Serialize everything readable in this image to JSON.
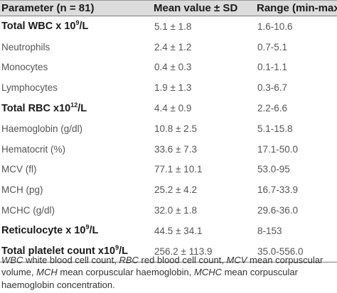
{
  "header": {
    "param": "Parameter (n = 81)",
    "mean": "Mean value ± SD",
    "range": "Range (min-max)"
  },
  "rows": [
    {
      "pre": "Total WBC x 10",
      "sup": "9",
      "post": "/L",
      "mean": "5.1 ± 1.8",
      "range": "1.6-10.6",
      "main": true
    },
    {
      "pre": "Neutrophils",
      "sup": "",
      "post": "",
      "mean": "2.4 ± 1.2",
      "range": "0.7-5.1",
      "main": false
    },
    {
      "pre": "Monocytes",
      "sup": "",
      "post": "",
      "mean": "0.4 ± 0.3",
      "range": "0.1-1.1",
      "main": false
    },
    {
      "pre": "Lymphocytes",
      "sup": "",
      "post": "",
      "mean": "1.9 ± 1.3",
      "range": "0.3-6.7",
      "main": false
    },
    {
      "pre": "Total RBC x10",
      "sup": "12",
      "post": "/L",
      "mean": "4.4 ± 0.9",
      "range": "2.2-6.6",
      "main": true
    },
    {
      "pre": "Haemoglobin (g/dl)",
      "sup": "",
      "post": "",
      "mean": "10.8 ± 2.5",
      "range": "5.1-15.8",
      "main": false
    },
    {
      "pre": "Hematocrit (%)",
      "sup": "",
      "post": "",
      "mean": "33.6 ± 7.3",
      "range": "17.1-50.0",
      "main": false
    },
    {
      "pre": "MCV (fl)",
      "sup": "",
      "post": "",
      "mean": "77.1 ± 10.1",
      "range": "53.0-95",
      "main": false
    },
    {
      "pre": "MCH (pg)",
      "sup": "",
      "post": "",
      "mean": "25.2 ± 4.2",
      "range": "16.7-33.9",
      "main": false
    },
    {
      "pre": "MCHC (g/dl)",
      "sup": "",
      "post": "",
      "mean": "32.0 ± 1.8",
      "range": "29.6-36.0",
      "main": false
    },
    {
      "pre": "Reticulocyte x 10",
      "sup": "9",
      "post": "/L",
      "mean": "44.5 ± 34.1",
      "range": "8-153",
      "main": true
    },
    {
      "pre": "Total platelet count x10",
      "sup": "9",
      "post": "/L",
      "mean": "256.2 ± 113.9",
      "range": "35.0-556.0",
      "main": true
    }
  ],
  "footnote": [
    {
      "abbr": "WBC",
      "text": " white blood cell count, "
    },
    {
      "abbr": "RBC",
      "text": " red blood cell count, "
    },
    {
      "abbr": "MCV",
      "text": " mean corpuscular volume, "
    },
    {
      "abbr": "MCH",
      "text": " mean corpuscular haemoglobin, "
    },
    {
      "abbr": "MCHC",
      "text": " mean corpuscular haemoglobin concentration."
    }
  ]
}
